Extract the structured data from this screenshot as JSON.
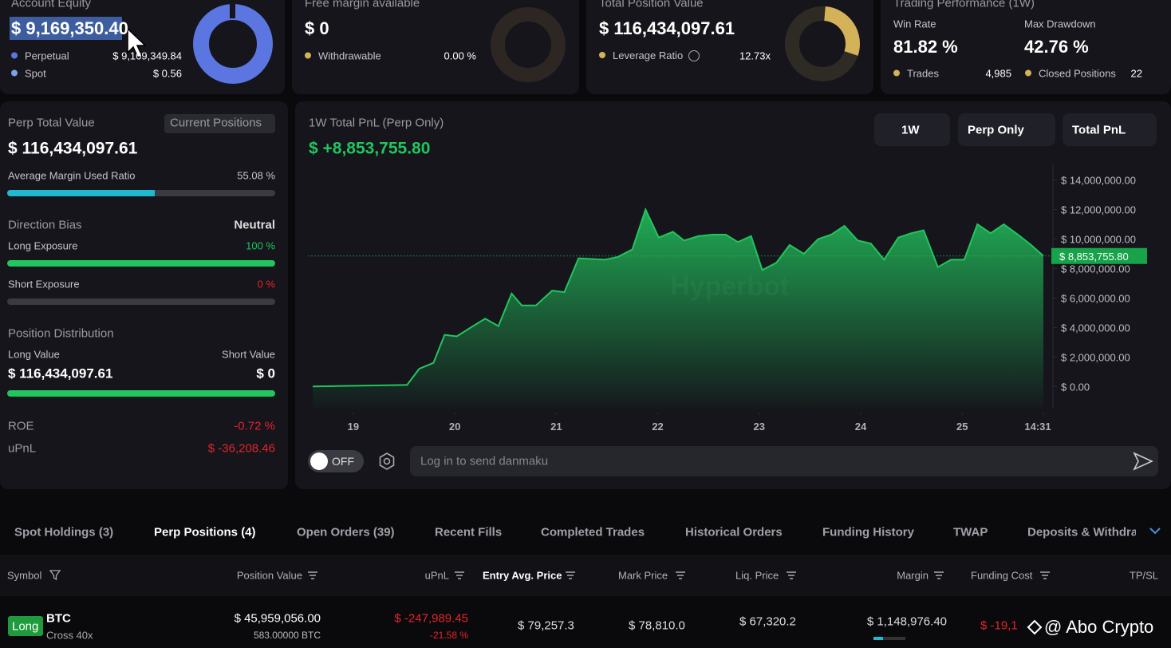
{
  "cards": [
    {
      "title": "Account Equity",
      "value": "$ 9,169,350.40",
      "rows": [
        {
          "label": "Perpetual",
          "value": "$ 9,169,349.84"
        },
        {
          "label": "Spot",
          "value": "$ 0.56"
        }
      ]
    },
    {
      "title": "Free margin available",
      "value": "$ 0",
      "rows": [
        {
          "label": "Withdrawable",
          "value": "0.00 %"
        }
      ]
    },
    {
      "title": "Total Position Value",
      "value": "$ 116,434,097.61",
      "rows": [
        {
          "label": "Leverage Ratio",
          "value": "12.73x"
        }
      ]
    },
    {
      "title": "Trading Performance (1W)",
      "stats": [
        {
          "label": "Win Rate",
          "value": "81.82 %"
        },
        {
          "label": "Max Drawdown",
          "value": "42.76 %"
        }
      ],
      "rows": [
        {
          "label": "Trades",
          "value": "4,985"
        },
        {
          "label": "Closed Positions",
          "value": "22"
        }
      ]
    }
  ],
  "perp": {
    "title": "Perp Total Value",
    "button": "Current Positions",
    "value": "$ 116,434,097.61",
    "margin": {
      "label": "Average Margin Used Ratio",
      "value": 55.08,
      "value_label": "55.08 %"
    },
    "direction": {
      "label": "Direction Bias",
      "value": "Neutral"
    },
    "long": {
      "label": "Long Exposure",
      "value": 100,
      "value_label": "100 %"
    },
    "short": {
      "label": "Short Exposure",
      "value": 0,
      "value_label": "0 %"
    },
    "distribution": {
      "title": "Position Distribution",
      "long_label": "Long Value",
      "short_label": "Short Value",
      "long_value": "$ 116,434,097.61",
      "short_value": "$ 0"
    },
    "roe": {
      "label": "ROE",
      "value": "-0.72 %"
    },
    "upnl": {
      "label": "uPnL",
      "value": "$ -36,208.46"
    }
  },
  "chart_data": {
    "type": "area",
    "title": "1W Total PnL (Perp Only)",
    "subtitle": "$ +8,853,755.80",
    "watermark": "Hyperbot",
    "color": "#22c55e",
    "x": [
      18.6,
      19.53,
      19.65,
      19.79,
      19.9,
      20.02,
      20.18,
      20.3,
      20.43,
      20.56,
      20.66,
      20.8,
      20.96,
      21.08,
      21.22,
      21.48,
      21.61,
      21.75,
      21.88,
      22.01,
      22.15,
      22.26,
      22.4,
      22.54,
      22.67,
      22.79,
      22.92,
      23.03,
      23.17,
      23.3,
      23.44,
      23.58,
      23.71,
      23.84,
      23.97,
      24.1,
      24.23,
      24.37,
      24.5,
      24.62,
      24.76,
      24.89,
      25.02,
      25.15,
      25.28,
      25.41,
      25.55,
      25.68,
      25.8
    ],
    "values": [
      0,
      100000,
      1200000,
      1600000,
      3500000,
      3400000,
      4100000,
      4600000,
      4100000,
      6300000,
      5500000,
      5500000,
      6500000,
      6400000,
      8700000,
      8600000,
      8800000,
      9300000,
      12000000,
      10100000,
      10500000,
      9900000,
      10200000,
      10300000,
      10300000,
      9800000,
      10200000,
      7900000,
      8400000,
      9600000,
      9000000,
      10000000,
      10300000,
      10900000,
      9900000,
      9700000,
      8600000,
      10100000,
      10400000,
      10600000,
      8100000,
      8600000,
      8600000,
      11000000,
      10400000,
      11000000,
      10300000,
      9600000,
      8853755.8
    ],
    "value_labels": [
      null,
      null,
      null,
      null,
      null,
      null,
      null,
      null,
      null,
      null,
      null,
      null,
      null,
      null,
      null,
      null,
      null,
      null,
      null,
      null,
      null,
      null,
      null,
      null,
      null,
      null,
      null,
      null,
      null,
      null,
      null,
      null,
      null,
      null,
      null,
      null,
      null,
      null,
      null,
      null,
      null,
      null,
      null,
      null,
      null,
      null,
      null,
      null,
      "$ 8,853,755.80"
    ],
    "xlim": [
      18.6,
      25.8
    ],
    "xticks": [
      19,
      20,
      21,
      22,
      23,
      24,
      25,
      {
        "value": 25.8,
        "label": "14:31"
      }
    ],
    "ylim": [
      -1500000,
      15500000
    ],
    "yticks": [
      {
        "value": 0,
        "label": "$ 0.00"
      },
      {
        "value": 2000000,
        "label": "$ 2,000,000.00"
      },
      {
        "value": 4000000,
        "label": "$ 4,000,000.00"
      },
      {
        "value": 6000000,
        "label": "$ 6,000,000.00"
      },
      {
        "value": 8000000,
        "label": "$ 8,000,000.00"
      },
      {
        "value": 10000000,
        "label": "$ 10,000,000.00"
      },
      {
        "value": 12000000,
        "label": "$ 12,000,000.00"
      },
      {
        "value": 14000000,
        "label": "$ 14,000,000.00"
      }
    ],
    "grid": false
  },
  "controls": [
    "1W",
    "Perp Only",
    "Total PnL"
  ],
  "toggle": "OFF",
  "danmaku_placeholder": "Log in to send danmaku",
  "tabs": [
    "Spot Holdings (3)",
    "Perp Positions (4)",
    "Open Orders (39)",
    "Recent Fills",
    "Completed Trades",
    "Historical Orders",
    "Funding History",
    "TWAP",
    "Deposits & Withdra"
  ],
  "table": {
    "columns": [
      "Symbol",
      "Position Value",
      "uPnL",
      "Entry Avg. Price",
      "Mark Price",
      "Liq. Price",
      "Margin",
      "Funding Cost",
      "TP/SL"
    ],
    "rows": [
      {
        "side": "Long",
        "symbol": "BTC",
        "mode": "Cross 40x",
        "position_value": "$ 45,959,056.00",
        "size": "583.00000 BTC",
        "upnl": "$ -247,989.45",
        "upnl_pct": "-21.58 %",
        "entry": "$ 79,257.3",
        "mark": "$ 78,810.0",
        "liq": "$ 67,320.2",
        "margin": "$ 1,148,976.40",
        "funding": "$ -19,1"
      }
    ]
  },
  "watermark": "@ Abo Crypto"
}
